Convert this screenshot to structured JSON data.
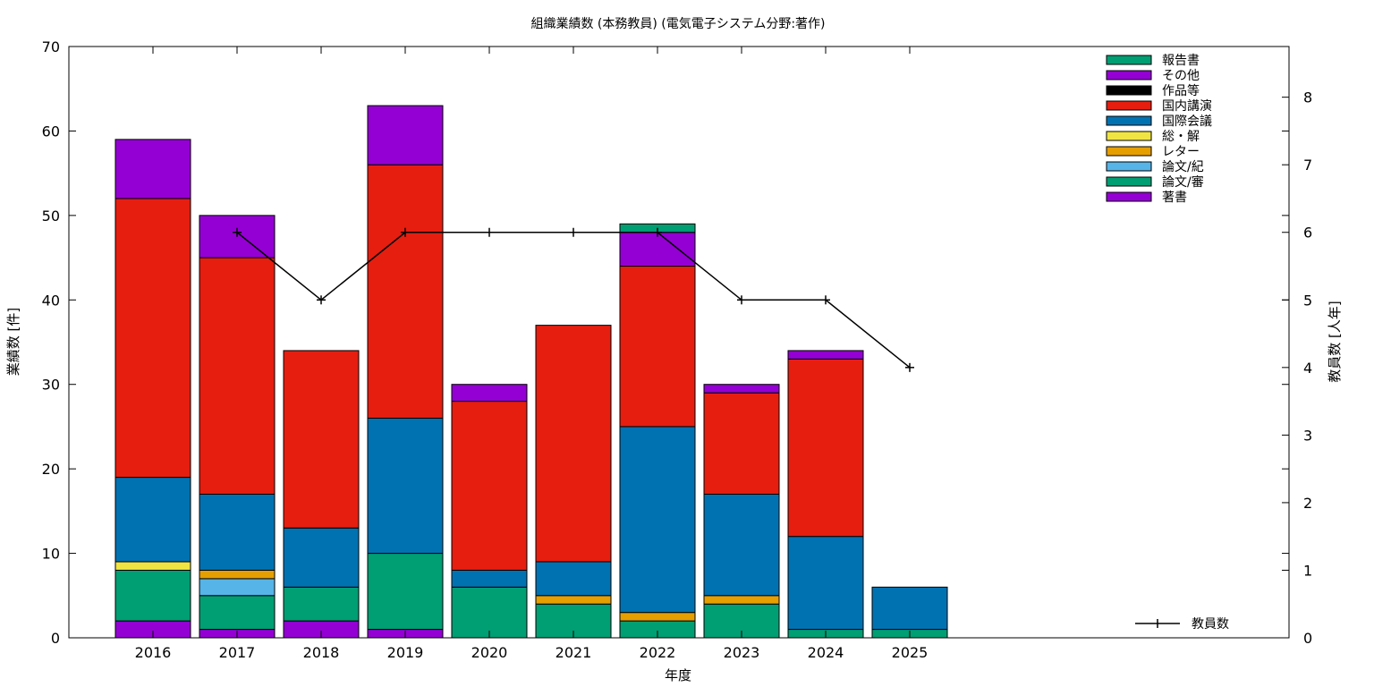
{
  "chart_data": {
    "type": "bar",
    "title": "組織業績数 (本務教員) (電気電子システム分野:著作)",
    "xlabel": "年度",
    "ylabel": "業績数 [件]",
    "y2label": "教員数 [人年]",
    "ylim": [
      0,
      70
    ],
    "y2lim": [
      0,
      8.75
    ],
    "yticks": [
      0,
      10,
      20,
      30,
      40,
      50,
      60,
      70
    ],
    "y2ticks": [
      0,
      1,
      2,
      3,
      4,
      5,
      6,
      7,
      8
    ],
    "categories": [
      "2016",
      "2017",
      "2018",
      "2019",
      "2020",
      "2021",
      "2022",
      "2023",
      "2024",
      "2025"
    ],
    "grid": false,
    "legend_position": "top-right",
    "stacked": true,
    "series": [
      {
        "name": "著書",
        "color": "#9400d3",
        "values": [
          2,
          1,
          2,
          1,
          0,
          0,
          0,
          0,
          0,
          0
        ]
      },
      {
        "name": "論文/審",
        "color": "#009e73",
        "values": [
          6,
          4,
          4,
          9,
          6,
          4,
          2,
          4,
          1,
          1
        ]
      },
      {
        "name": "論文/紀",
        "color": "#56b4e9",
        "values": [
          0,
          2,
          0,
          0,
          0,
          0,
          0,
          0,
          0,
          0
        ]
      },
      {
        "name": "レター",
        "color": "#e69f00",
        "values": [
          0,
          1,
          0,
          0,
          0,
          1,
          1,
          1,
          0,
          0
        ]
      },
      {
        "name": "総・解",
        "color": "#f0e442",
        "values": [
          1,
          0,
          0,
          0,
          0,
          0,
          0,
          0,
          0,
          0
        ]
      },
      {
        "name": "国際会議",
        "color": "#0072b2",
        "values": [
          10,
          9,
          7,
          16,
          2,
          4,
          22,
          12,
          11,
          5
        ]
      },
      {
        "name": "国内講演",
        "color": "#e51e10",
        "values": [
          33,
          28,
          21,
          30,
          20,
          28,
          19,
          12,
          21,
          0
        ]
      },
      {
        "name": "作品等",
        "color": "#000000",
        "values": [
          0,
          0,
          0,
          0,
          0,
          0,
          0,
          0,
          0,
          0
        ]
      },
      {
        "name": "その他",
        "color": "#9400d3",
        "values": [
          7,
          5,
          0,
          7,
          2,
          0,
          4,
          1,
          1,
          0
        ]
      },
      {
        "name": "報告書",
        "color": "#009e73",
        "values": [
          0,
          0,
          0,
          0,
          0,
          0,
          1,
          0,
          0,
          0
        ]
      }
    ],
    "line_series": {
      "name": "教員数",
      "axis": "y2",
      "color": "#000000",
      "x": [
        "2017",
        "2018",
        "2019",
        "2020",
        "2021",
        "2022",
        "2023",
        "2024",
        "2025"
      ],
      "values": [
        6,
        5,
        6,
        6,
        6,
        6,
        5,
        5,
        4
      ]
    }
  }
}
